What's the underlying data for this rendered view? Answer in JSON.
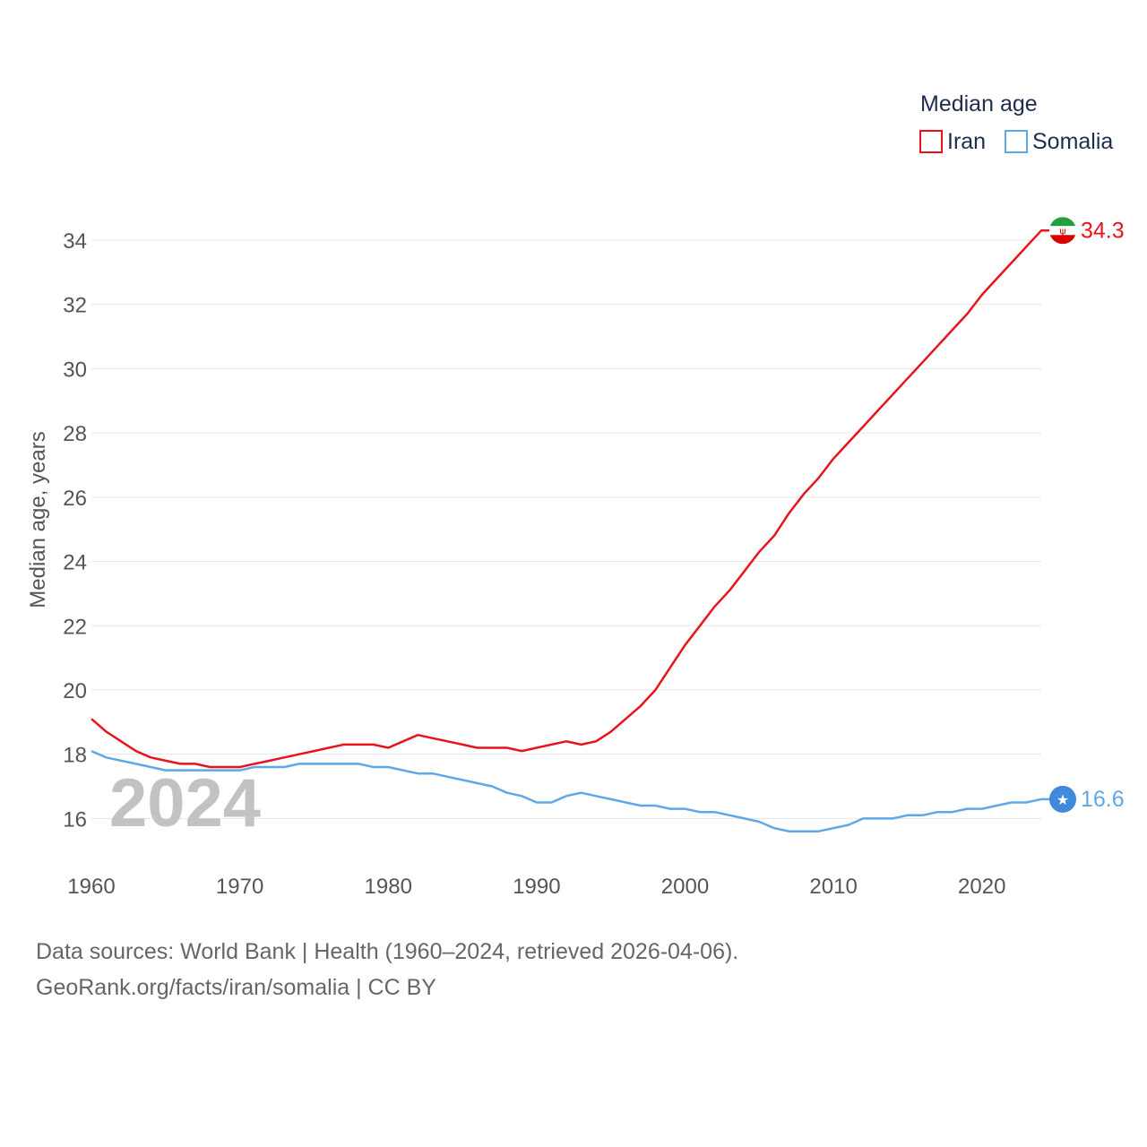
{
  "chart_data": {
    "type": "line",
    "title": "Median age",
    "ylabel": "Median age, years",
    "xlabel": "",
    "current_year_label": "2024",
    "xlim": [
      1960,
      2024
    ],
    "ylim": [
      14.7,
      35.2
    ],
    "yticks": [
      16,
      18,
      20,
      22,
      24,
      26,
      28,
      30,
      32,
      34
    ],
    "xticks": [
      1960,
      1970,
      1980,
      1990,
      2000,
      2010,
      2020
    ],
    "series": [
      {
        "name": "Iran",
        "color": "#e8141c",
        "end_label": "34.3",
        "flag_icon": "iran-flag-icon",
        "x": [
          1960,
          1961,
          1962,
          1963,
          1964,
          1965,
          1966,
          1967,
          1968,
          1969,
          1970,
          1971,
          1972,
          1973,
          1974,
          1975,
          1976,
          1977,
          1978,
          1979,
          1980,
          1981,
          1982,
          1983,
          1984,
          1985,
          1986,
          1987,
          1988,
          1989,
          1990,
          1991,
          1992,
          1993,
          1994,
          1995,
          1996,
          1997,
          1998,
          1999,
          2000,
          2001,
          2002,
          2003,
          2004,
          2005,
          2006,
          2007,
          2008,
          2009,
          2010,
          2011,
          2012,
          2013,
          2014,
          2015,
          2016,
          2017,
          2018,
          2019,
          2020,
          2021,
          2022,
          2023,
          2024
        ],
        "values": [
          19.1,
          18.7,
          18.4,
          18.1,
          17.9,
          17.8,
          17.7,
          17.7,
          17.6,
          17.6,
          17.6,
          17.7,
          17.8,
          17.9,
          18.0,
          18.1,
          18.2,
          18.3,
          18.3,
          18.3,
          18.2,
          18.4,
          18.6,
          18.5,
          18.4,
          18.3,
          18.2,
          18.2,
          18.2,
          18.1,
          18.2,
          18.3,
          18.4,
          18.3,
          18.4,
          18.7,
          19.1,
          19.5,
          20.0,
          20.7,
          21.4,
          22.0,
          22.6,
          23.1,
          23.7,
          24.3,
          24.8,
          25.5,
          26.1,
          26.6,
          27.2,
          27.7,
          28.2,
          28.7,
          29.2,
          29.7,
          30.2,
          30.7,
          31.2,
          31.7,
          32.3,
          32.8,
          33.3,
          33.8,
          34.3
        ]
      },
      {
        "name": "Somalia",
        "color": "#5fa8e8",
        "end_label": "16.6",
        "flag_icon": "somalia-flag-icon",
        "x": [
          1960,
          1961,
          1962,
          1963,
          1964,
          1965,
          1966,
          1967,
          1968,
          1969,
          1970,
          1971,
          1972,
          1973,
          1974,
          1975,
          1976,
          1977,
          1978,
          1979,
          1980,
          1981,
          1982,
          1983,
          1984,
          1985,
          1986,
          1987,
          1988,
          1989,
          1990,
          1991,
          1992,
          1993,
          1994,
          1995,
          1996,
          1997,
          1998,
          1999,
          2000,
          2001,
          2002,
          2003,
          2004,
          2005,
          2006,
          2007,
          2008,
          2009,
          2010,
          2011,
          2012,
          2013,
          2014,
          2015,
          2016,
          2017,
          2018,
          2019,
          2020,
          2021,
          2022,
          2023,
          2024
        ],
        "values": [
          18.1,
          17.9,
          17.8,
          17.7,
          17.6,
          17.5,
          17.5,
          17.5,
          17.5,
          17.5,
          17.5,
          17.6,
          17.6,
          17.6,
          17.7,
          17.7,
          17.7,
          17.7,
          17.7,
          17.6,
          17.6,
          17.5,
          17.4,
          17.4,
          17.3,
          17.2,
          17.1,
          17.0,
          16.8,
          16.7,
          16.5,
          16.5,
          16.7,
          16.8,
          16.7,
          16.6,
          16.5,
          16.4,
          16.4,
          16.3,
          16.3,
          16.2,
          16.2,
          16.1,
          16.0,
          15.9,
          15.7,
          15.6,
          15.6,
          15.6,
          15.7,
          15.8,
          16.0,
          16.0,
          16.0,
          16.1,
          16.1,
          16.2,
          16.2,
          16.3,
          16.3,
          16.4,
          16.5,
          16.5,
          16.6
        ]
      }
    ]
  },
  "footer": {
    "sources": "Data sources: World Bank | Health (1960–2024, retrieved 2026-04-06).",
    "attribution": "GeoRank.org/facts/iran/somalia | CC BY"
  }
}
